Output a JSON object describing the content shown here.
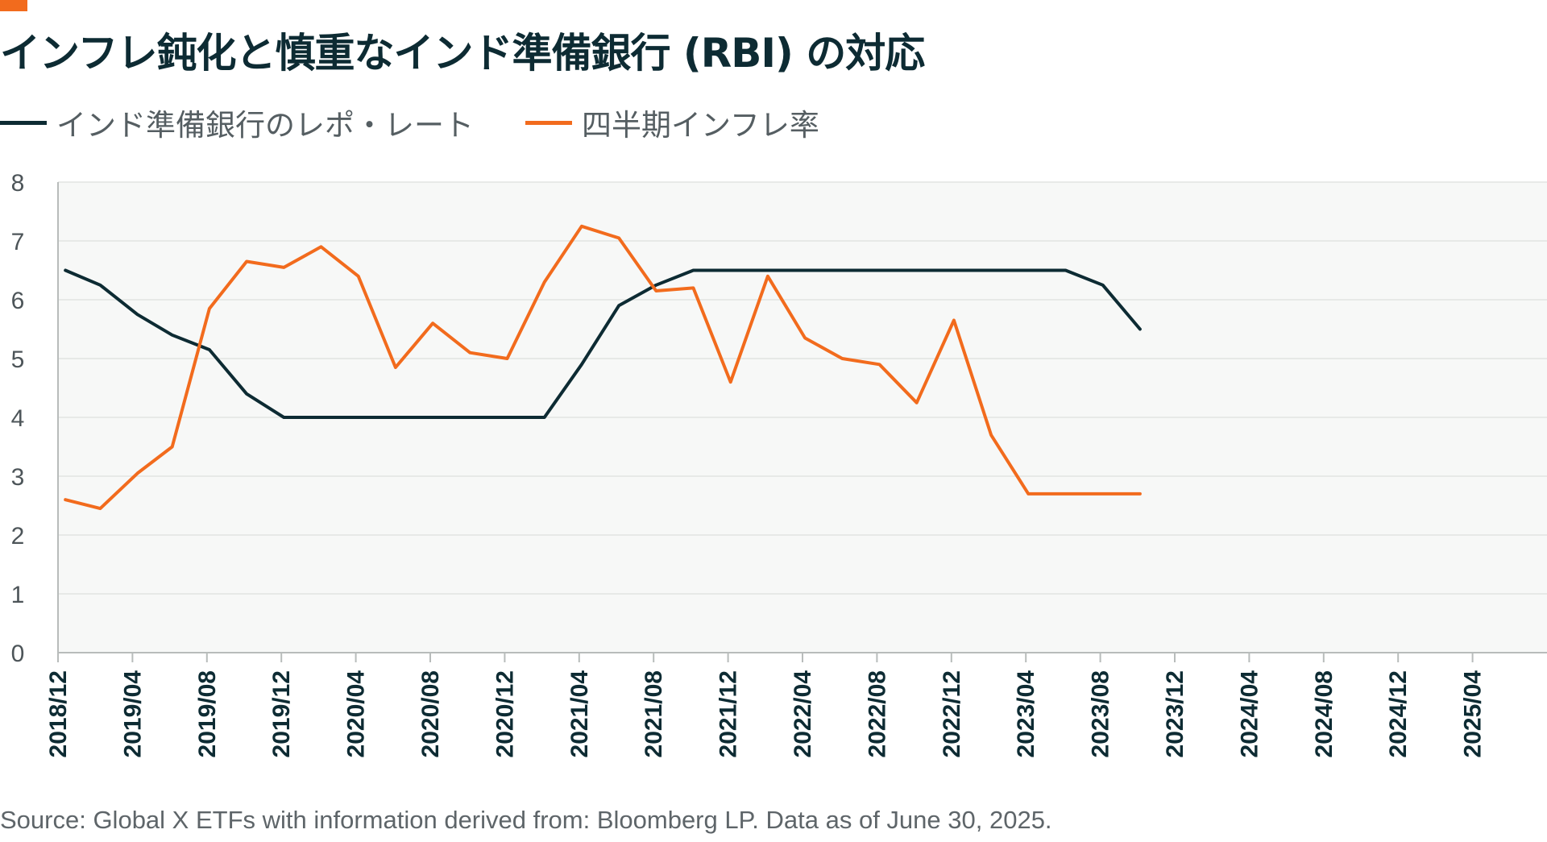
{
  "title": "インフレ鈍化と慎重なインド準備銀行 (RBI) の対応",
  "colors": {
    "accent": "#f26b1d",
    "repo": "#0d2b33",
    "inflation": "#f26b1d",
    "plot_bg": "#f7f8f7",
    "grid": "#e2e4e2"
  },
  "legend": [
    {
      "label": "インド準備銀行のレポ・レート",
      "color": "#0d2b33"
    },
    {
      "label": "四半期インフレ率",
      "color": "#f26b1d"
    }
  ],
  "source": "Source: Global X ETFs with information derived from: Bloomberg LP. Data as of June 30, 2025.",
  "chart_data": {
    "type": "line",
    "title": "インフレ鈍化と慎重なインド準備銀行 (RBI) の対応",
    "xlabel": "",
    "ylabel": "",
    "ylim": [
      0,
      8
    ],
    "yticks": [
      0,
      1,
      2,
      3,
      4,
      5,
      6,
      7,
      8
    ],
    "grid": true,
    "x_ticks": [
      "2018/12",
      "2019/04",
      "2019/08",
      "2019/12",
      "2020/04",
      "2020/08",
      "2020/12",
      "2021/04",
      "2021/08",
      "2021/12",
      "2022/04",
      "2022/08",
      "2022/12",
      "2023/04",
      "2023/08",
      "2023/12",
      "2024/04",
      "2024/08",
      "2024/12",
      "2025/04"
    ],
    "x_index": [
      0.15,
      0.85,
      1.6,
      2.3,
      3.05,
      3.8,
      4.55,
      5.3,
      6.05,
      6.8,
      7.55,
      8.3,
      9.05,
      9.8,
      10.55,
      11.3,
      12.05,
      12.8,
      13.55,
      14.3,
      15.05,
      15.8,
      16.55,
      17.3,
      18.05,
      18.8,
      19.55,
      20.3,
      21.05,
      21.8
    ],
    "series": [
      {
        "name": "インド準備銀行のレポ・レート",
        "values": [
          6.5,
          6.25,
          5.75,
          5.4,
          5.15,
          4.4,
          4.0,
          4.0,
          4.0,
          4.0,
          4.0,
          4.0,
          4.0,
          4.0,
          4.9,
          5.9,
          6.25,
          6.5,
          6.5,
          6.5,
          6.5,
          6.5,
          6.5,
          6.5,
          6.5,
          6.5,
          6.5,
          6.5,
          6.25,
          5.5
        ]
      },
      {
        "name": "四半期インフレ率",
        "values": [
          2.6,
          2.45,
          3.05,
          3.5,
          5.85,
          6.65,
          6.55,
          6.9,
          6.4,
          4.85,
          5.6,
          5.1,
          5.0,
          6.3,
          7.25,
          7.05,
          6.15,
          6.2,
          4.6,
          6.4,
          5.35,
          5.0,
          4.9,
          4.25,
          5.65,
          3.7,
          2.7,
          2.7,
          2.7,
          2.7
        ]
      }
    ]
  }
}
